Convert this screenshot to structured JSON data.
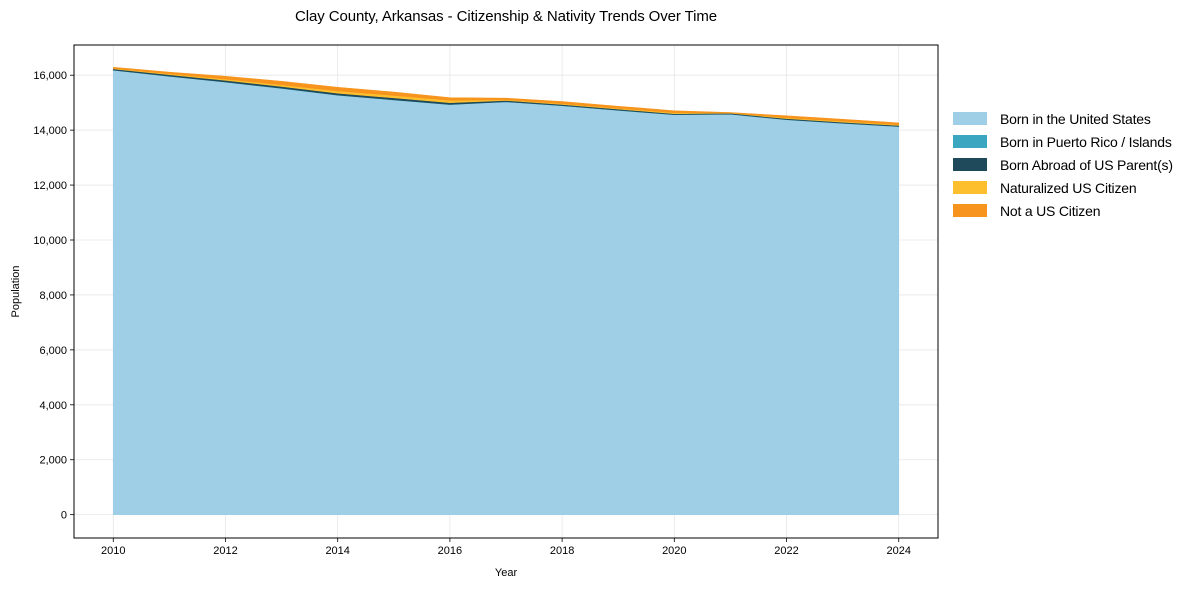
{
  "chart_data": {
    "type": "area",
    "stacked": true,
    "title": "Clay County, Arkansas - Citizenship & Nativity Trends Over Time",
    "xlabel": "Year",
    "ylabel": "Population",
    "x": [
      2010,
      2011,
      2012,
      2013,
      2014,
      2015,
      2016,
      2017,
      2018,
      2019,
      2020,
      2021,
      2022,
      2023,
      2024
    ],
    "xticks": [
      2010,
      2012,
      2014,
      2016,
      2018,
      2020,
      2022,
      2024
    ],
    "yticks": [
      0,
      2000,
      4000,
      6000,
      8000,
      10000,
      12000,
      14000,
      16000
    ],
    "ytick_labels": [
      "0",
      "2,000",
      "4,000",
      "6,000",
      "8,000",
      "10,000",
      "12,000",
      "14,000",
      "16,000"
    ],
    "xlim": [
      2009.3,
      2024.7
    ],
    "ylim": [
      -850,
      17100
    ],
    "grid": true,
    "legend_position": "right",
    "series": [
      {
        "name": "Born in the United States",
        "color": "#9ecfe6",
        "values": [
          16180,
          15960,
          15750,
          15520,
          15270,
          15100,
          14930,
          15030,
          14890,
          14720,
          14560,
          14580,
          14380,
          14250,
          14130
        ]
      },
      {
        "name": "Born in Puerto Rico / Islands",
        "color": "#3aa6bf",
        "values": [
          5,
          5,
          5,
          5,
          5,
          5,
          5,
          5,
          5,
          5,
          5,
          5,
          5,
          5,
          5
        ]
      },
      {
        "name": "Born Abroad of US Parent(s)",
        "color": "#1f4a5c",
        "values": [
          45,
          55,
          60,
          65,
          70,
          70,
          65,
          45,
          40,
          40,
          35,
          30,
          35,
          35,
          35
        ]
      },
      {
        "name": "Naturalized US Citizen",
        "color": "#fdbf2d",
        "values": [
          20,
          30,
          45,
          60,
          80,
          90,
          85,
          30,
          30,
          30,
          35,
          15,
          30,
          35,
          25
        ]
      },
      {
        "name": "Not a US Citizen",
        "color": "#f7941d",
        "values": [
          40,
          60,
          100,
          130,
          135,
          120,
          95,
          55,
          75,
          75,
          70,
          10,
          70,
          70,
          70
        ]
      }
    ]
  },
  "legend": {
    "items": [
      {
        "label": "Born in the United States",
        "color": "#9ecfe6"
      },
      {
        "label": "Born in Puerto Rico / Islands",
        "color": "#3aa6bf"
      },
      {
        "label": "Born Abroad of US Parent(s)",
        "color": "#1f4a5c"
      },
      {
        "label": "Naturalized US Citizen",
        "color": "#fdbf2d"
      },
      {
        "label": "Not a US Citizen",
        "color": "#f7941d"
      }
    ]
  }
}
